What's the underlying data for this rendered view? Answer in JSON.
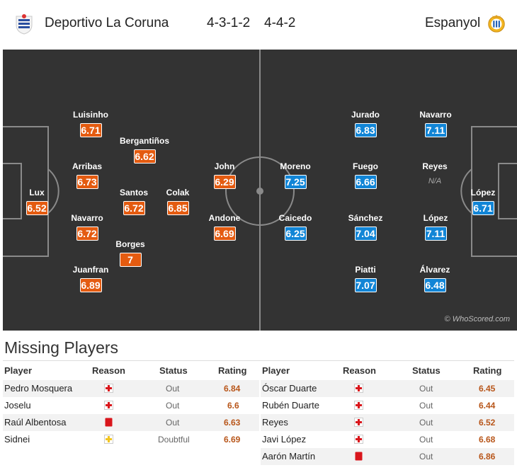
{
  "header": {
    "home_team": "Deportivo La Coruna",
    "home_formation": "4-3-1-2",
    "away_formation": "4-4-2",
    "away_team": "Espanyol"
  },
  "pitch": {
    "watermark": "© WhoScored.com",
    "home_players": [
      {
        "name": "Luisinho",
        "rating": "6.71"
      },
      {
        "name": "Bergantiños",
        "rating": "6.62"
      },
      {
        "name": "Arribas",
        "rating": "6.73"
      },
      {
        "name": "Lux",
        "rating": "6.52"
      },
      {
        "name": "Santos",
        "rating": "6.72"
      },
      {
        "name": "Colak",
        "rating": "6.85"
      },
      {
        "name": "John",
        "rating": "6.29"
      },
      {
        "name": "Navarro",
        "rating": "6.72"
      },
      {
        "name": "Andone",
        "rating": "6.69"
      },
      {
        "name": "Borges",
        "rating": "7"
      },
      {
        "name": "Juanfran",
        "rating": "6.89"
      }
    ],
    "away_players": [
      {
        "name": "Jurado",
        "rating": "6.83"
      },
      {
        "name": "Navarro",
        "rating": "7.11"
      },
      {
        "name": "Moreno",
        "rating": "7.25"
      },
      {
        "name": "Fuego",
        "rating": "6.66"
      },
      {
        "name": "Reyes",
        "rating": "N/A"
      },
      {
        "name": "López",
        "rating": "6.71"
      },
      {
        "name": "Caicedo",
        "rating": "6.25"
      },
      {
        "name": "Sánchez",
        "rating": "7.04"
      },
      {
        "name": "López",
        "rating": "7.11"
      },
      {
        "name": "Piatti",
        "rating": "7.07"
      },
      {
        "name": "Álvarez",
        "rating": "6.48"
      }
    ]
  },
  "missing": {
    "title": "Missing Players",
    "columns": {
      "player": "Player",
      "reason": "Reason",
      "status": "Status",
      "rating": "Rating"
    },
    "home": [
      {
        "player": "Pedro Mosquera",
        "reason": "injury",
        "status": "Out",
        "rating": "6.84"
      },
      {
        "player": "Joselu",
        "reason": "injury",
        "status": "Out",
        "rating": "6.6"
      },
      {
        "player": "Raúl Albentosa",
        "reason": "red-card",
        "status": "Out",
        "rating": "6.63"
      },
      {
        "player": "Sidnei",
        "reason": "doubtful",
        "status": "Doubtful",
        "rating": "6.69"
      }
    ],
    "away": [
      {
        "player": "Óscar Duarte",
        "reason": "injury",
        "status": "Out",
        "rating": "6.45"
      },
      {
        "player": "Rubén Duarte",
        "reason": "injury",
        "status": "Out",
        "rating": "6.44"
      },
      {
        "player": "Reyes",
        "reason": "injury",
        "status": "Out",
        "rating": "6.52"
      },
      {
        "player": "Javi López",
        "reason": "injury",
        "status": "Out",
        "rating": "6.68"
      },
      {
        "player": "Aarón Martín",
        "reason": "red-card",
        "status": "Out",
        "rating": "6.86"
      }
    ]
  },
  "colors": {
    "pitch": "#333333",
    "home_rating": "#e45b10",
    "away_rating": "#1185d6",
    "rating_text": "#b8561a",
    "injury": "#d9161c",
    "doubtful": "#f2c521"
  }
}
